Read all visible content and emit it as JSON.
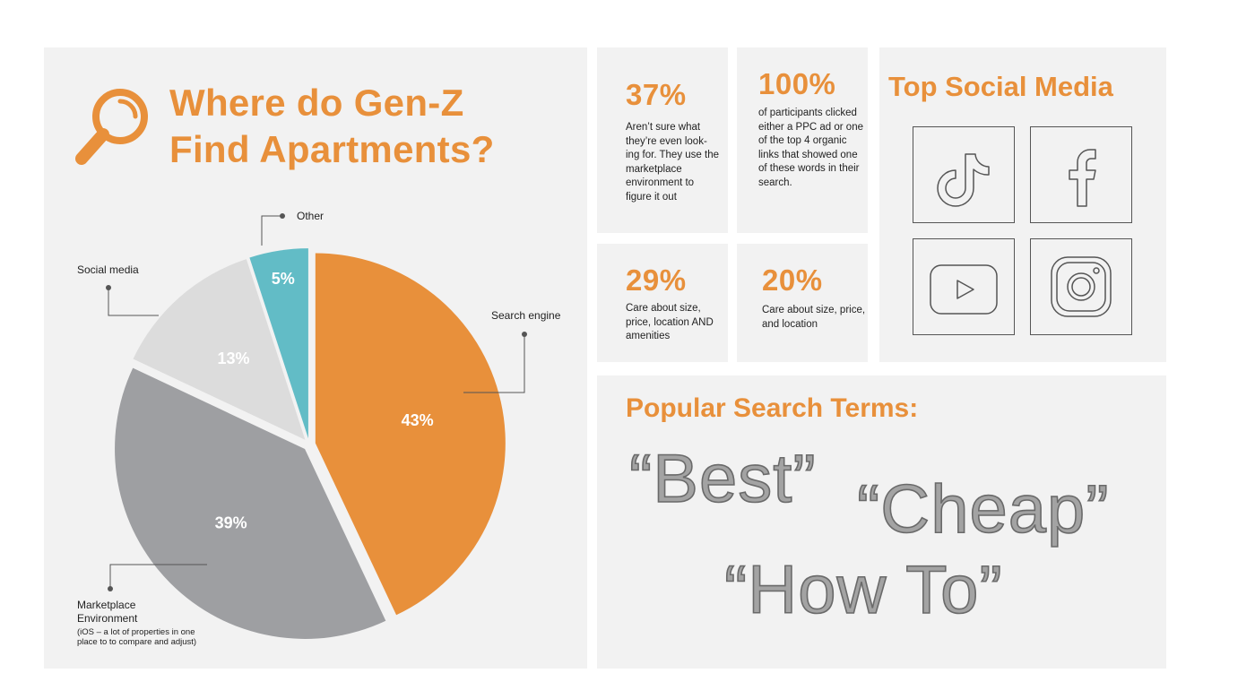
{
  "title_line1": "Where do Gen-Z",
  "title_line2": "Find Apartments?",
  "chart_data": {
    "type": "pie",
    "slices": [
      {
        "label": "Search engine",
        "value": 43,
        "display": "43%",
        "color": "#e8903b"
      },
      {
        "label": "Marketplace Environment",
        "note": "(iOS – a lot of properties in one place to to compare and adjust)",
        "value": 39,
        "display": "39%",
        "color": "#9e9fa2"
      },
      {
        "label": "Social media",
        "value": 13,
        "display": "13%",
        "color": "#dcdcdc"
      },
      {
        "label": "Other",
        "value": 5,
        "display": "5%",
        "color": "#62bcc6"
      }
    ],
    "legend_labels": {
      "other": "Other",
      "social": "Social media",
      "search": "Search engine",
      "market_line1": "Marketplace",
      "market_line2": "Environment",
      "market_note_line1": "(iOS – a lot of properties in one",
      "market_note_line2": "place to to compare and adjust)"
    }
  },
  "stats": {
    "s37": {
      "value": "37%",
      "text": "Aren’t sure what they’re even look- ing for. They use the marketplace environment to figure it out"
    },
    "s100": {
      "value": "100%",
      "text": "of participants clicked either a PPC ad or one of the top 4 organic links that showed one of these words in their search."
    },
    "s29": {
      "value": "29%",
      "text": "Care about size, price, location AND amenities"
    },
    "s20": {
      "value": "20%",
      "text": "Care about size, price, and location"
    }
  },
  "social": {
    "title": "Top Social Media",
    "icons": [
      "tiktok-icon",
      "facebook-icon",
      "youtube-icon",
      "instagram-icon"
    ]
  },
  "search_terms": {
    "title": "Popular Search Terms:",
    "terms": [
      "“Best”",
      "“Cheap”",
      "“How To”"
    ]
  },
  "colors": {
    "accent": "#e8903b",
    "panel": "#f2f2f2"
  }
}
